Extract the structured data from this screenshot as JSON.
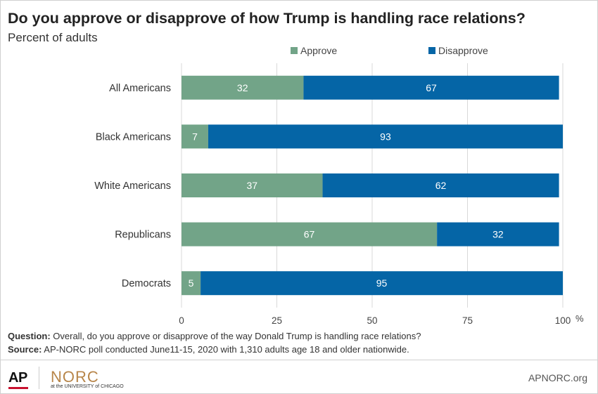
{
  "title": "Do you approve or disapprove of how Trump is handling race relations?",
  "subtitle": "Percent of adults",
  "notes": {
    "question_label": "Question:",
    "question_text": " Overall, do you approve or disapprove of the way Donald Trump is handling race relations?",
    "source_label": "Source:",
    "source_text": " AP-NORC poll conducted June11-15, 2020 with 1,310 adults age 18 and older nationwide."
  },
  "footer": {
    "ap_logo": "AP",
    "norc_logo": "NORC",
    "norc_sub": "at the UNIVERSITY of CHICAGO",
    "site": "APNORC.org"
  },
  "chart_data": {
    "type": "bar",
    "orientation": "horizontal",
    "stacked": true,
    "categories": [
      "All Americans",
      "Black Americans",
      "White Americans",
      "Republicans",
      "Democrats"
    ],
    "series": [
      {
        "name": "Approve",
        "color": "#72a488",
        "values": [
          32,
          7,
          37,
          67,
          5
        ]
      },
      {
        "name": "Disapprove",
        "color": "#0565a6",
        "values": [
          67,
          93,
          62,
          32,
          95
        ]
      }
    ],
    "xlim": [
      0,
      100
    ],
    "xticks": [
      "0",
      "25",
      "50",
      "75",
      "100"
    ],
    "xunit": "%",
    "legend_position": "top",
    "grid": "vertical"
  }
}
